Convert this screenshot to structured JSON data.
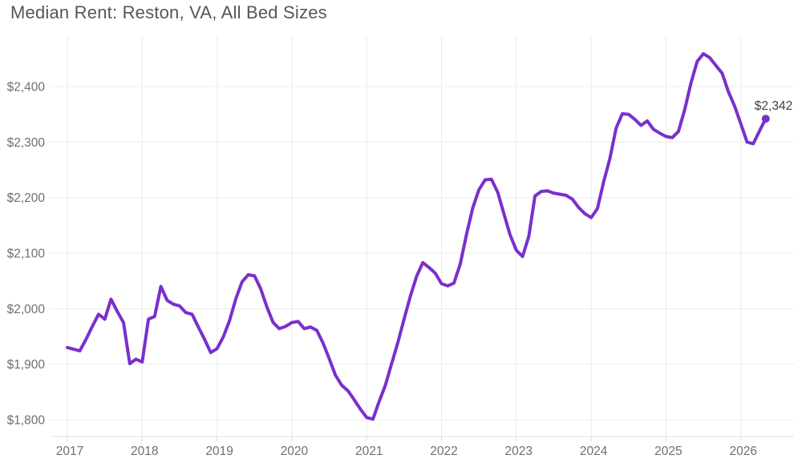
{
  "chart_data": {
    "type": "line",
    "title": "Median Rent: Reston, VA, All Bed Sizes",
    "xlabel": "",
    "ylabel": "",
    "x_tick_labels": [
      "2017",
      "2018",
      "2019",
      "2020",
      "2021",
      "2022",
      "2023",
      "2024",
      "2025",
      "2026"
    ],
    "y_tick_labels": [
      "$1,800",
      "$1,900",
      "$2,000",
      "$2,100",
      "$2,200",
      "$2,300",
      "$2,400"
    ],
    "y_tick_values": [
      1800,
      1900,
      2000,
      2100,
      2200,
      2300,
      2400
    ],
    "ylim": [
      1770,
      2490
    ],
    "grid": true,
    "legend_position": "none",
    "points_per_year": 12,
    "series": [
      {
        "name": "Median Rent",
        "start": "Jan 2017",
        "frequency": "monthly",
        "values": [
          1930,
          1927,
          1924,
          1945,
          1968,
          1990,
          1981,
          2017,
          1995,
          1975,
          1901,
          1909,
          1904,
          1981,
          1986,
          2040,
          2015,
          2008,
          2005,
          1993,
          1990,
          1967,
          1945,
          1921,
          1928,
          1949,
          1978,
          2017,
          2048,
          2061,
          2059,
          2036,
          2003,
          1975,
          1964,
          1968,
          1975,
          1977,
          1964,
          1967,
          1961,
          1938,
          1910,
          1880,
          1862,
          1852,
          1836,
          1819,
          1804,
          1801,
          1833,
          1862,
          1901,
          1939,
          1981,
          2022,
          2058,
          2083,
          2074,
          2064,
          2045,
          2041,
          2046,
          2080,
          2133,
          2181,
          2214,
          2232,
          2233,
          2210,
          2171,
          2133,
          2105,
          2094,
          2130,
          2203,
          2211,
          2212,
          2208,
          2206,
          2204,
          2197,
          2182,
          2171,
          2164,
          2180,
          2228,
          2270,
          2325,
          2351,
          2350,
          2341,
          2330,
          2338,
          2323,
          2316,
          2310,
          2308,
          2319,
          2358,
          2406,
          2445,
          2459,
          2452,
          2438,
          2424,
          2391,
          2365,
          2333,
          2300,
          2297,
          2320,
          2342
        ]
      }
    ],
    "last_point_label": "$2,342",
    "last_point_value": 2342
  },
  "colors": {
    "line": "#7a2fcd",
    "grid": "#ebebeb",
    "axis_line": "#e0e0e0",
    "axis_tick": "#d9d9d9",
    "title_text": "#55565a",
    "tick_label_text": "#6d6f74",
    "annotation_text": "#404248"
  }
}
